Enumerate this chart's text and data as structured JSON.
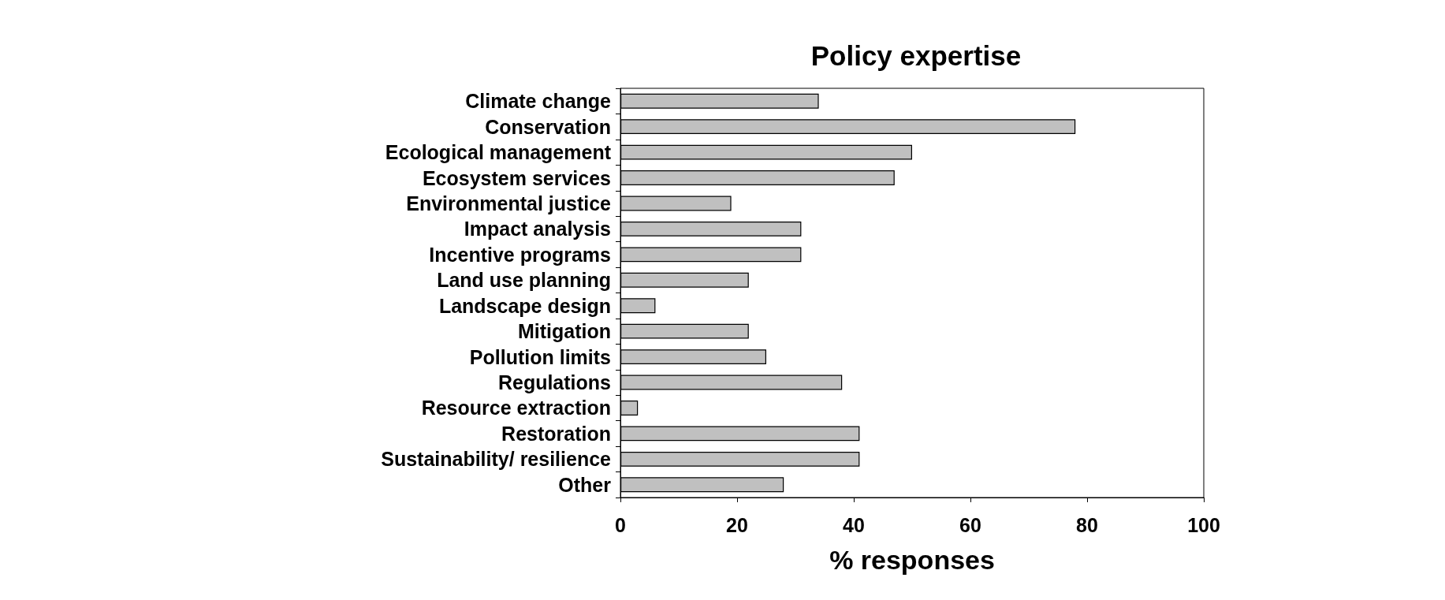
{
  "chart_data": {
    "type": "bar",
    "orientation": "horizontal",
    "title": "Policy expertise",
    "xlabel": "% responses",
    "categories": [
      "Climate change",
      "Conservation",
      "Ecological management",
      "Ecosystem services",
      "Environmental justice",
      "Impact analysis",
      "Incentive programs",
      "Land use planning",
      "Landscape design",
      "Mitigation",
      "Pollution limits",
      "Regulations",
      "Resource extraction",
      "Restoration",
      "Sustainability/ resilience",
      "Other"
    ],
    "values": [
      34,
      78,
      50,
      47,
      19,
      31,
      31,
      22,
      6,
      22,
      25,
      38,
      3,
      41,
      41,
      28
    ],
    "color": "#c0c0c0",
    "xlim": [
      0,
      100
    ],
    "xticks": [
      0,
      20,
      40,
      60,
      80,
      100
    ],
    "grid": false
  }
}
